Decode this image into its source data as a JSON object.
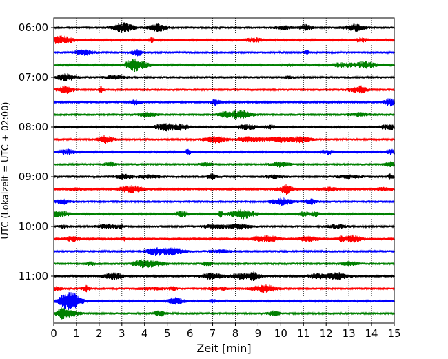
{
  "chart_data": {
    "type": "line",
    "subtype": "helicorder",
    "xlabel": "Zeit  [min]",
    "ylabel": "UTC (Lokalzeit = UTC + 02:00)",
    "xlim": [
      0,
      15
    ],
    "x_ticks": [
      0,
      1,
      2,
      3,
      4,
      5,
      6,
      7,
      8,
      9,
      10,
      11,
      12,
      13,
      14,
      15
    ],
    "y_ticks": [
      {
        "label": "06:00",
        "row": 0
      },
      {
        "label": "07:00",
        "row": 4
      },
      {
        "label": "08:00",
        "row": 8
      },
      {
        "label": "09:00",
        "row": 12
      },
      {
        "label": "10:00",
        "row": 16
      },
      {
        "label": "11:00",
        "row": 20
      }
    ],
    "grid": {
      "vertical": "dotted",
      "horizontal": false
    },
    "row_colors": [
      "#000000",
      "#ff0000",
      "#0000ff",
      "#008000"
    ],
    "trace_rows": 24,
    "row_interval_minutes": 15,
    "start_time": "06:00"
  }
}
